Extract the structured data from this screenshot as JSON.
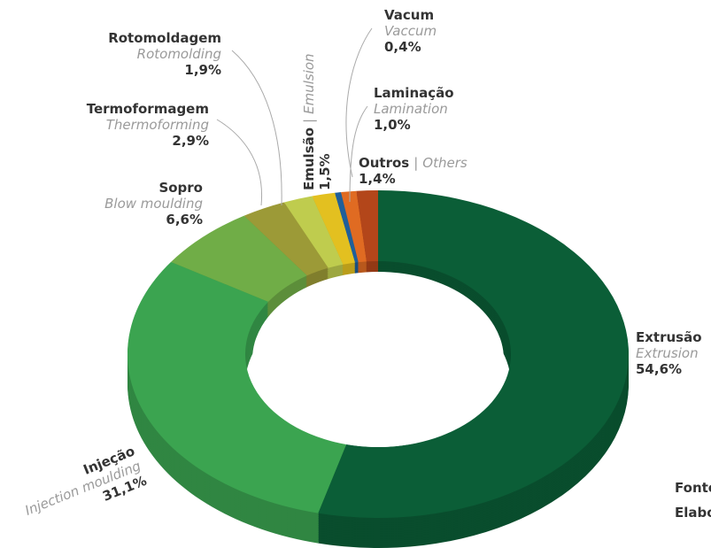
{
  "chart_data": {
    "type": "donut",
    "categories": [
      "Extrusão",
      "Injeção",
      "Sopro",
      "Termoformagem",
      "Rotomoldagem",
      "Emulsão",
      "Vacum",
      "Laminação",
      "Outros"
    ],
    "translations": [
      "Extrusion",
      "Injection moulding",
      "Blow moulding",
      "Thermoforming",
      "Rotomolding",
      "Emulsion",
      "Vaccum",
      "Lamination",
      "Others"
    ],
    "values": [
      54.6,
      31.1,
      6.6,
      2.9,
      1.9,
      1.5,
      0.4,
      1.0,
      1.4
    ],
    "value_labels": [
      "54,6%",
      "31,1%",
      "6,6%",
      "2,9%",
      "1,9%",
      "1,5%",
      "0,4%",
      "1,0%",
      "1,4%"
    ],
    "colors": [
      "#0b5e37",
      "#3ba450",
      "#70ad47",
      "#9c9a37",
      "#bfcc4e",
      "#e3c020",
      "#1f5f9a",
      "#e06b22",
      "#b3461a"
    ],
    "separator": "|",
    "footer": [
      "Fonte",
      "Elabo"
    ]
  }
}
